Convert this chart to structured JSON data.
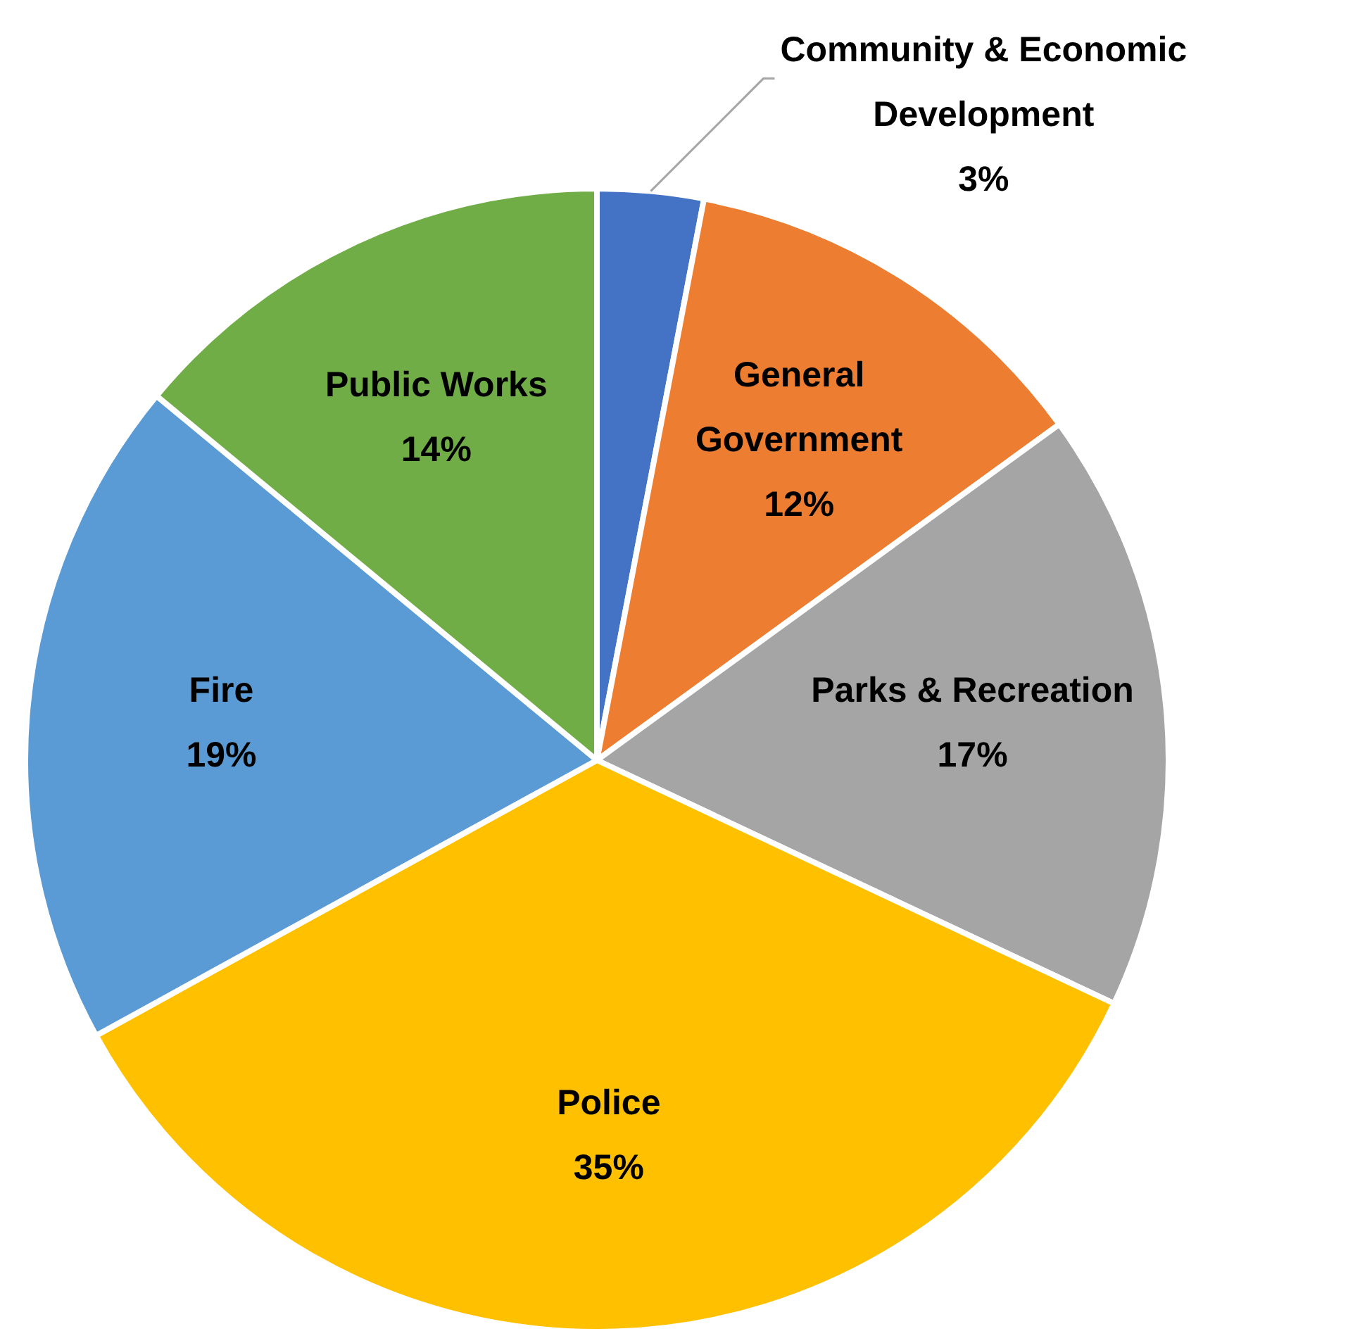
{
  "chart_data": {
    "type": "pie",
    "categories": [
      "Community & Economic Development",
      "General Government",
      "Parks & Recreation",
      "Police",
      "Fire",
      "Public Works"
    ],
    "values": [
      3,
      12,
      17,
      35,
      19,
      14
    ],
    "colors": [
      "#4472c4",
      "#ed7d31",
      "#a5a5a5",
      "#ffc000",
      "#5b9bd5",
      "#70ad47"
    ],
    "value_labels": [
      "3%",
      "12%",
      "17%",
      "35%",
      "19%",
      "14%"
    ],
    "legend": false
  }
}
